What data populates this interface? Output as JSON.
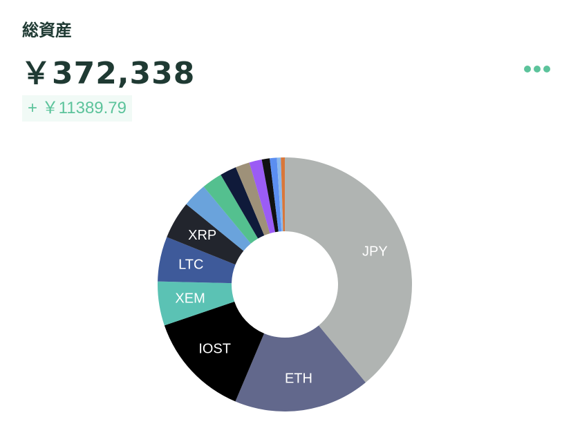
{
  "header": {
    "title": "総資産",
    "total": "￥372,338",
    "change": "+ ￥11389.79"
  },
  "chart_data": {
    "type": "pie",
    "categories": [
      "JPY",
      "ETH",
      "IOST",
      "XEM",
      "LTC",
      "XRP",
      null,
      null,
      null,
      null,
      null,
      null,
      null,
      null,
      null
    ],
    "values": [
      39,
      17.3,
      13.4,
      5.6,
      5.7,
      4.8,
      3.1,
      2.6,
      2.1,
      1.8,
      1.6,
      1.0,
      0.9,
      0.5,
      0.5
    ],
    "colors": [
      "#b0b4b2",
      "#62688c",
      "#000000",
      "#5bc2b4",
      "#3e5a9a",
      "#22252d",
      "#6aa3dc",
      "#54c08f",
      "#0f1a3a",
      "#9e9179",
      "#9b5cf5",
      "#111111",
      "#5b8ef0",
      "#8ab8ec",
      "#d9773a"
    ]
  }
}
